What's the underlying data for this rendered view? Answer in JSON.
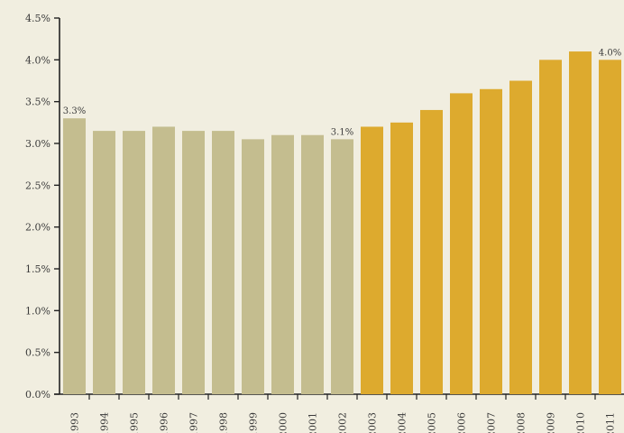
{
  "chart_data": {
    "type": "bar",
    "title": "",
    "xlabel": "",
    "ylabel": "",
    "categories": [
      "1993",
      "1994",
      "1995",
      "1996",
      "1997",
      "1998",
      "1999",
      "2000",
      "2001",
      "2002",
      "2003",
      "2004",
      "2005",
      "2006",
      "2007",
      "2008",
      "2009",
      "2010",
      "2011"
    ],
    "values": [
      3.3,
      3.15,
      3.15,
      3.2,
      3.15,
      3.15,
      3.05,
      3.1,
      3.1,
      3.05,
      3.2,
      3.25,
      3.4,
      3.6,
      3.65,
      3.75,
      4.0,
      4.1,
      4.0
    ],
    "ylim": [
      0,
      4.5
    ],
    "yticks": [
      "0.0%",
      "0.5%",
      "1.0%",
      "1.5%",
      "2.0%",
      "2.5%",
      "3.0%",
      "3.5%",
      "4.0%",
      "4.5%"
    ],
    "ytick_values": [
      0,
      0.5,
      1.0,
      1.5,
      2.0,
      2.5,
      3.0,
      3.5,
      4.0,
      4.5
    ],
    "data_labels": [
      {
        "index": 0,
        "text": "3.3%"
      },
      {
        "index": 9,
        "text": "3.1%"
      },
      {
        "index": 18,
        "text": "4.0%"
      }
    ],
    "colors": {
      "early_bars": "#c4bd8f",
      "late_bars": "#ddaa2e",
      "axis": "#222222",
      "background": "#f1eee0"
    },
    "color_split_category": "2003",
    "grid": false,
    "legend": "none"
  }
}
